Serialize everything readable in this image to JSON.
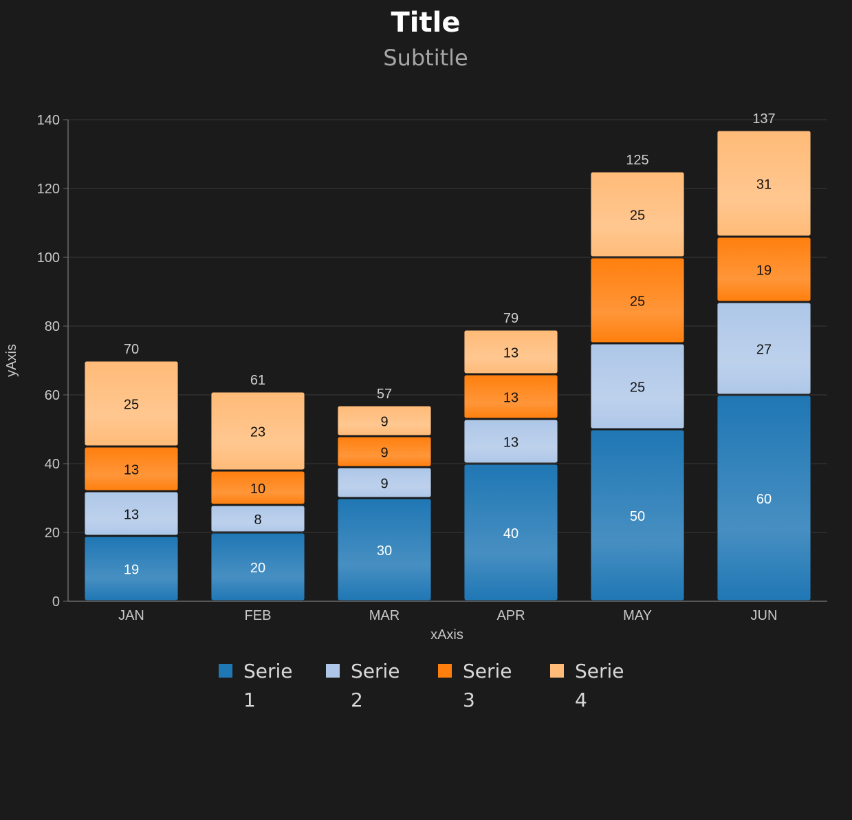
{
  "chart_data": {
    "type": "bar",
    "stacked": true,
    "title": "Title",
    "subtitle": "Subtitle",
    "xlabel": "xAxis",
    "ylabel": "yAxis",
    "ylim": [
      0,
      140
    ],
    "yticks": [
      0,
      20,
      40,
      60,
      80,
      100,
      120,
      140
    ],
    "grid": true,
    "legend_position": "bottom",
    "categories": [
      "JAN",
      "FEB",
      "MAR",
      "APR",
      "MAY",
      "JUN"
    ],
    "totals": [
      70,
      61,
      57,
      79,
      125,
      137
    ],
    "series": [
      {
        "name": "Serie 1",
        "color": "#1f77b4",
        "values": [
          19,
          20,
          30,
          40,
          50,
          60
        ]
      },
      {
        "name": "Serie 2",
        "color": "#aec7e8",
        "values": [
          13,
          8,
          9,
          13,
          25,
          27
        ]
      },
      {
        "name": "Serie 3",
        "color": "#ff7f0e",
        "values": [
          13,
          10,
          9,
          13,
          25,
          19
        ]
      },
      {
        "name": "Serie 4",
        "color": "#ffbb78",
        "values": [
          25,
          23,
          9,
          13,
          25,
          31
        ]
      }
    ]
  }
}
